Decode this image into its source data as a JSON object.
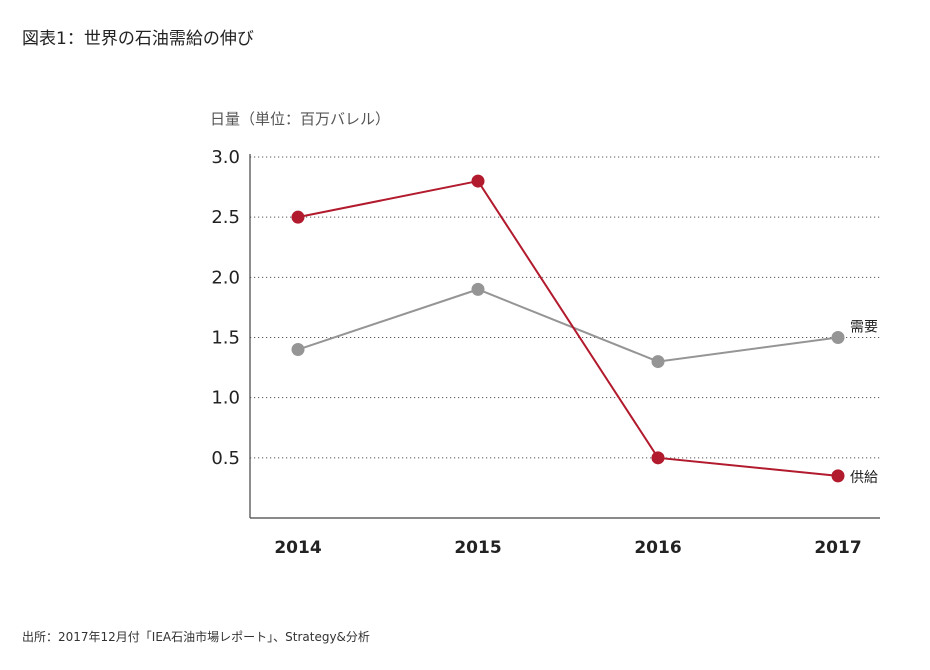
{
  "figure_title": "図表1：世界の石油需給の伸び",
  "source_note": "出所：2017年12月付「IEA石油市場レポート」、Strategy&分析",
  "colors": {
    "supply": "#b21a2d",
    "demand": "#959595",
    "grid": "#555555",
    "axis": "#444444"
  },
  "chart_data": {
    "type": "line",
    "ylabel": "日量（単位：百万バレル）",
    "categories": [
      "2014",
      "2015",
      "2016",
      "2017"
    ],
    "yticks": [
      "0.5",
      "1.0",
      "1.5",
      "2.0",
      "2.5",
      "3.0"
    ],
    "ylim": [
      0,
      3.0
    ],
    "grid": "horizontal-dotted",
    "series": [
      {
        "name": "需要",
        "values": [
          1.4,
          1.9,
          1.3,
          1.5
        ],
        "color": "#959595"
      },
      {
        "name": "供給",
        "values": [
          2.5,
          2.8,
          0.5,
          0.35
        ],
        "color": "#b21a2d"
      }
    ]
  }
}
